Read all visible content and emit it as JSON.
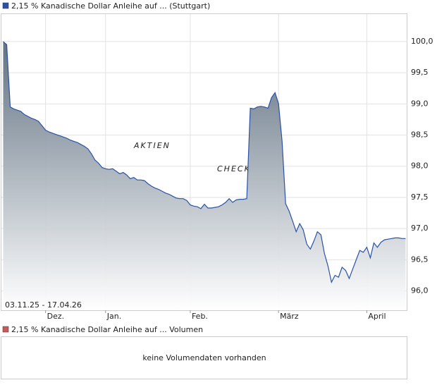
{
  "chart_data": {
    "type": "area",
    "title": "2,15 % Kanadische Dollar Anleihe auf ... (Stuttgart)",
    "date_range": "03.11.25 - 17.04.26",
    "watermark": [
      "AKTIEN",
      "CHECK"
    ],
    "series": [
      {
        "name": "2,15 % Kanadische Dollar Anleihe auf ... (Stuttgart)",
        "color": "#2a52a8",
        "values": [
          100.0,
          99.95,
          98.95,
          98.92,
          98.9,
          98.88,
          98.83,
          98.8,
          98.77,
          98.75,
          98.72,
          98.65,
          98.58,
          98.55,
          98.53,
          98.51,
          98.49,
          98.47,
          98.45,
          98.42,
          98.4,
          98.38,
          98.35,
          98.32,
          98.28,
          98.2,
          98.1,
          98.05,
          97.98,
          97.96,
          97.95,
          97.96,
          97.92,
          97.88,
          97.9,
          97.86,
          97.8,
          97.82,
          97.78,
          97.78,
          97.77,
          97.72,
          97.68,
          97.65,
          97.63,
          97.6,
          97.57,
          97.55,
          97.52,
          97.49,
          97.48,
          97.48,
          97.45,
          97.38,
          97.36,
          97.35,
          97.32,
          97.39,
          97.33,
          97.33,
          97.34,
          97.35,
          97.38,
          97.42,
          97.48,
          97.42,
          97.46,
          97.47,
          97.47,
          97.48,
          98.93,
          98.92,
          98.95,
          98.96,
          98.95,
          98.93,
          99.1,
          99.18,
          99.0,
          98.4,
          97.4,
          97.28,
          97.12,
          96.95,
          97.08,
          96.98,
          96.75,
          96.67,
          96.8,
          96.95,
          96.9,
          96.6,
          96.4,
          96.14,
          96.25,
          96.22,
          96.38,
          96.33,
          96.2,
          96.35,
          96.5,
          96.65,
          96.62,
          96.7,
          96.53,
          96.77,
          96.7,
          96.78,
          96.82,
          96.83,
          96.84,
          96.85,
          96.85,
          96.84,
          96.84
        ]
      }
    ],
    "categories": [
      null,
      null,
      null,
      null,
      null,
      null,
      null,
      null,
      null,
      null,
      null,
      null,
      "Dez.",
      null,
      null,
      null,
      null,
      null,
      null,
      null,
      null,
      null,
      null,
      null,
      null,
      null,
      null,
      null,
      null,
      "Jan.",
      null,
      null,
      null,
      null,
      null,
      null,
      null,
      null,
      null,
      null,
      null,
      null,
      null,
      null,
      null,
      null,
      null,
      null,
      null,
      null,
      null,
      null,
      null,
      "Feb.",
      null,
      null,
      null,
      null,
      null,
      null,
      null,
      null,
      null,
      null,
      null,
      null,
      null,
      null,
      null,
      null,
      null,
      null,
      null,
      null,
      null,
      null,
      null,
      null,
      "März",
      null,
      null,
      null,
      null,
      null,
      null,
      null,
      null,
      null,
      null,
      null,
      null,
      null,
      null,
      null,
      null,
      null,
      null,
      null,
      null,
      null,
      null,
      null,
      null,
      "April",
      null,
      null,
      null,
      null,
      null,
      null,
      null,
      null,
      null,
      null,
      null
    ],
    "ylim": [
      95.69,
      100.44
    ],
    "yticks": [
      {
        "value": 96.0,
        "label": "96,0"
      },
      {
        "value": 96.5,
        "label": "96,5"
      },
      {
        "value": 97.0,
        "label": "97,0"
      },
      {
        "value": 97.5,
        "label": "97,5"
      },
      {
        "value": 98.0,
        "label": "98,0"
      },
      {
        "value": 98.5,
        "label": "98,5"
      },
      {
        "value": 99.0,
        "label": "99,0"
      },
      {
        "value": 99.5,
        "label": "99,5"
      },
      {
        "value": 100.0,
        "label": "100,0"
      }
    ],
    "grid": true
  },
  "volume": {
    "legend": "2,15 % Kanadische Dollar Anleihe auf ... Volumen",
    "color": "#c85a5a",
    "message": "keine Volumendaten vorhanden"
  }
}
